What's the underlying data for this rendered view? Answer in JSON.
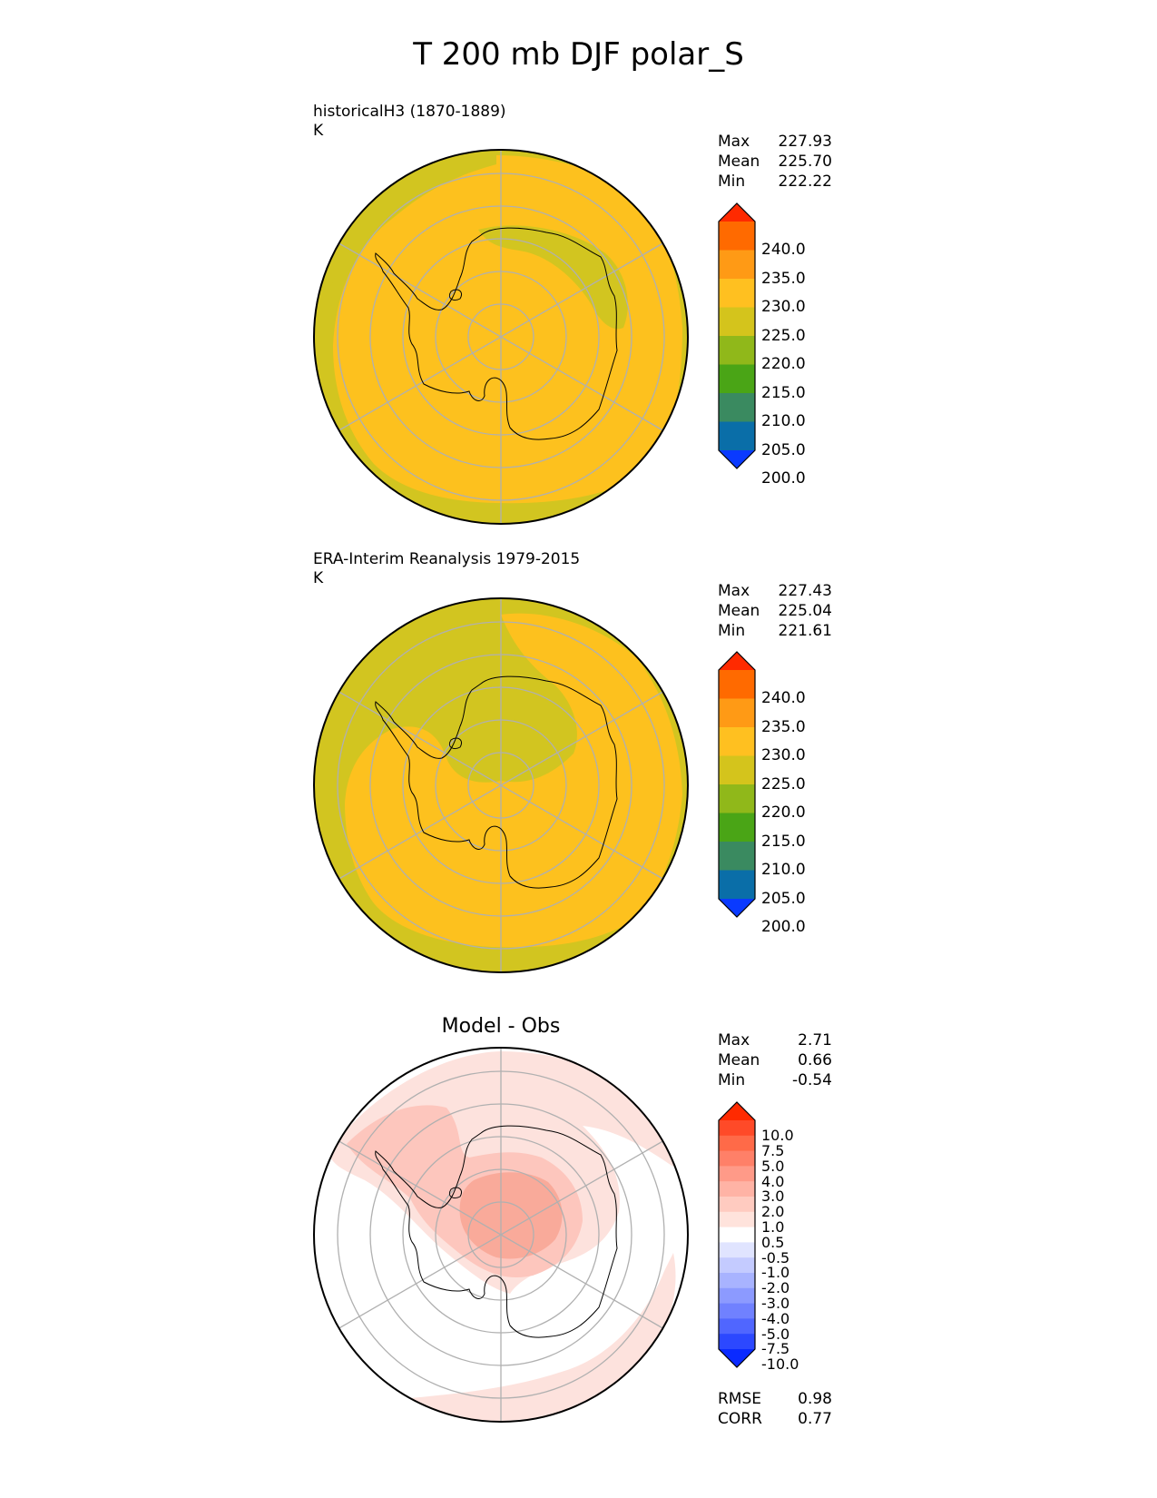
{
  "title": "T 200 mb DJF polar_S",
  "panels": [
    {
      "id": "model",
      "label_line1": "historicalH3 (1870-1889)",
      "label_line2": "K",
      "stats": [
        {
          "name": "Max",
          "value": "227.93"
        },
        {
          "name": "Mean",
          "value": "225.70"
        },
        {
          "name": "Min",
          "value": "222.22"
        }
      ],
      "colorbar": {
        "labels": [
          "240.0",
          "235.0",
          "230.0",
          "225.0",
          "220.0",
          "215.0",
          "210.0",
          "205.0",
          "200.0"
        ],
        "colors": [
          "#ff2a00",
          "#ff6a00",
          "#ff9a15",
          "#ffc020",
          "#d4c41c",
          "#90b81a",
          "#4aa516",
          "#3a8a60",
          "#0a6ea8",
          "#0a3aff"
        ]
      }
    },
    {
      "id": "obs",
      "label_line1": "ERA-Interim Reanalysis 1979-2015",
      "label_line2": "K",
      "stats": [
        {
          "name": "Max",
          "value": "227.43"
        },
        {
          "name": "Mean",
          "value": "225.04"
        },
        {
          "name": "Min",
          "value": "221.61"
        }
      ],
      "colorbar": {
        "labels": [
          "240.0",
          "235.0",
          "230.0",
          "225.0",
          "220.0",
          "215.0",
          "210.0",
          "205.0",
          "200.0"
        ],
        "colors": [
          "#ff2a00",
          "#ff6a00",
          "#ff9a15",
          "#ffc020",
          "#d4c41c",
          "#90b81a",
          "#4aa516",
          "#3a8a60",
          "#0a6ea8",
          "#0a3aff"
        ]
      }
    },
    {
      "id": "diff",
      "center_title": "Model - Obs",
      "stats": [
        {
          "name": "Max",
          "value": "2.71"
        },
        {
          "name": "Mean",
          "value": "0.66"
        },
        {
          "name": "Min",
          "value": "-0.54"
        }
      ],
      "colorbar": {
        "labels": [
          "10.0",
          "7.5",
          "5.0",
          "4.0",
          "3.0",
          "2.0",
          "1.0",
          "0.5",
          "-0.5",
          "-1.0",
          "-2.0",
          "-3.0",
          "-4.0",
          "-5.0",
          "-7.5",
          "-10.0"
        ],
        "colors": [
          "#ff2a00",
          "#ff4a28",
          "#ff6a48",
          "#ff8068",
          "#ff9a88",
          "#ffb3a5",
          "#ffcbc0",
          "#ffe3dc",
          "#ffffff",
          "#e0e4ff",
          "#c4cbff",
          "#a8b3ff",
          "#8c9aff",
          "#7081ff",
          "#5066ff",
          "#2c48ff",
          "#0a2aff"
        ]
      },
      "metrics": [
        {
          "name": "RMSE",
          "value": "0.98"
        },
        {
          "name": "CORR",
          "value": "0.77"
        }
      ]
    }
  ],
  "colors": {
    "field_warm": "#fdc11e",
    "field_cool": "#d2c520",
    "diff_light": "#fde2dd",
    "diff_mid": "#fdc6bd",
    "diff_strong": "#f9aa9a",
    "grid": "#b0b0b0",
    "coast": "#000000"
  }
}
